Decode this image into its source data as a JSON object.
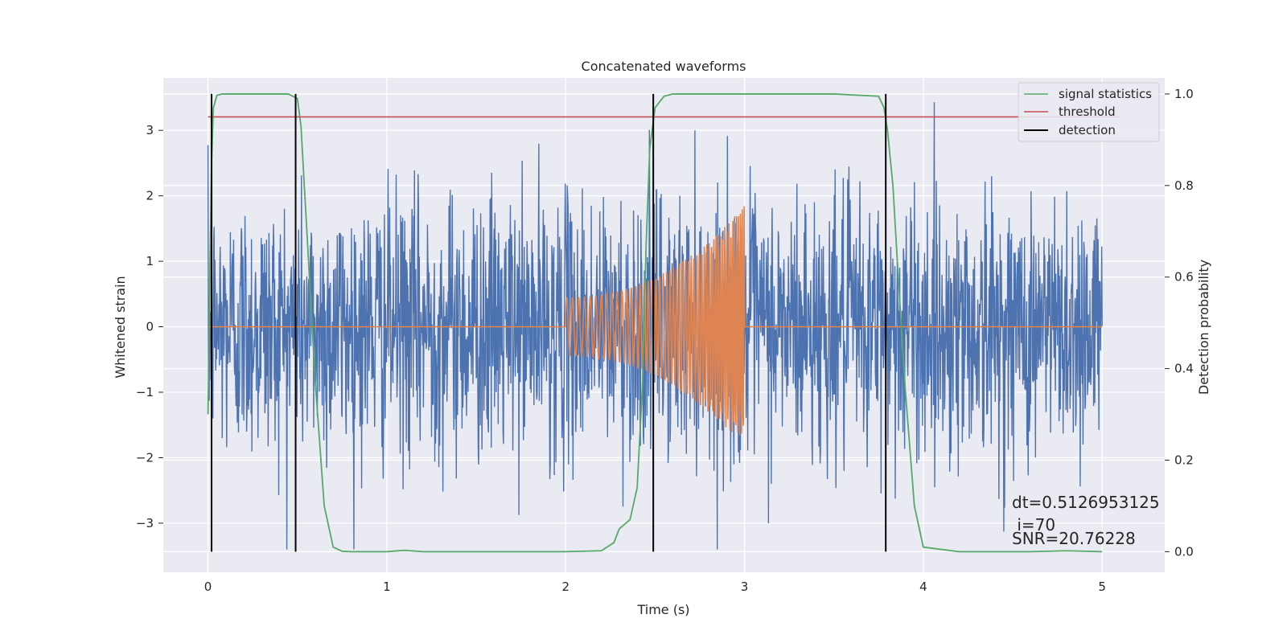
{
  "chart_data": {
    "type": "line",
    "title": "Concatenated waveforms",
    "xlabel": "Time (s)",
    "ylabel_left": "Whitened strain",
    "ylabel_right": "Detection probability",
    "xlim": [
      -0.25,
      5.35
    ],
    "ylim_left": [
      -3.75,
      3.8
    ],
    "ylim_right": [
      -0.045,
      1.035
    ],
    "x_ticks": [
      0,
      1,
      2,
      3,
      4,
      5
    ],
    "y_ticks_left": [
      -3,
      -2,
      -1,
      0,
      1,
      2,
      3
    ],
    "y_ticks_right": [
      0.0,
      0.2,
      0.4,
      0.6,
      0.8,
      1.0
    ],
    "y_tick_labels_left": [
      "−3",
      "−2",
      "−1",
      "0",
      "1",
      "2",
      "3"
    ],
    "y_tick_labels_right": [
      "0.0",
      "0.2",
      "0.4",
      "0.6",
      "0.8",
      "1.0"
    ],
    "grid": true,
    "legend_position": "top-right",
    "series": [
      {
        "name": "",
        "color": "#4c72b0",
        "axis": "left",
        "kind": "noise",
        "x_range": [
          0,
          5
        ],
        "std": 1.0,
        "max": 3.45,
        "min": -3.4
      },
      {
        "name": "",
        "color": "#dd8452",
        "axis": "left",
        "kind": "chirp",
        "x_range": [
          2.0,
          3.0
        ],
        "amplitude_start": 0.45,
        "amplitude_end": 1.85,
        "frequency_start_hz": 30,
        "frequency_end_hz": 100
      },
      {
        "name": "signal statistics",
        "color": "#55a868",
        "axis": "right",
        "x": [
          0,
          0.01,
          0.02,
          0.03,
          0.05,
          0.08,
          0.15,
          0.3,
          0.45,
          0.5,
          0.52,
          0.55,
          0.6,
          0.65,
          0.7,
          0.75,
          0.8,
          1.0,
          1.1,
          1.2,
          1.5,
          2.0,
          2.2,
          2.27,
          2.3,
          2.33,
          2.36,
          2.4,
          2.43,
          2.45,
          2.47,
          2.5,
          2.55,
          2.6,
          2.7,
          3.0,
          3.5,
          3.75,
          3.78,
          3.8,
          3.83,
          3.86,
          3.9,
          3.95,
          4.0,
          4.2,
          4.6,
          4.8,
          5.0
        ],
        "y": [
          0.3,
          0.6,
          0.85,
          0.97,
          0.997,
          1.0,
          1.0,
          1.0,
          1.0,
          0.99,
          0.93,
          0.72,
          0.37,
          0.1,
          0.01,
          0.001,
          0.0,
          0.0,
          0.003,
          0.0,
          0.0,
          0.0,
          0.002,
          0.02,
          0.05,
          0.06,
          0.07,
          0.14,
          0.37,
          0.67,
          0.88,
          0.97,
          0.995,
          1.0,
          1.0,
          1.0,
          1.0,
          0.995,
          0.97,
          0.92,
          0.8,
          0.6,
          0.35,
          0.1,
          0.01,
          0.0,
          0.0,
          0.002,
          0.0
        ]
      },
      {
        "name": "threshold",
        "color": "#c44e52",
        "axis": "right",
        "x": [
          0,
          5.1
        ],
        "y": [
          0.95,
          0.95
        ]
      },
      {
        "name": "detection",
        "color": "#000000",
        "axis": "right",
        "x": [
          0.02,
          0.49,
          2.49,
          3.79
        ],
        "y_range": [
          0.0,
          1.0
        ]
      }
    ],
    "annotations": [
      "dt=0.5126953125",
      " i=70",
      "SNR=20.76228"
    ]
  }
}
